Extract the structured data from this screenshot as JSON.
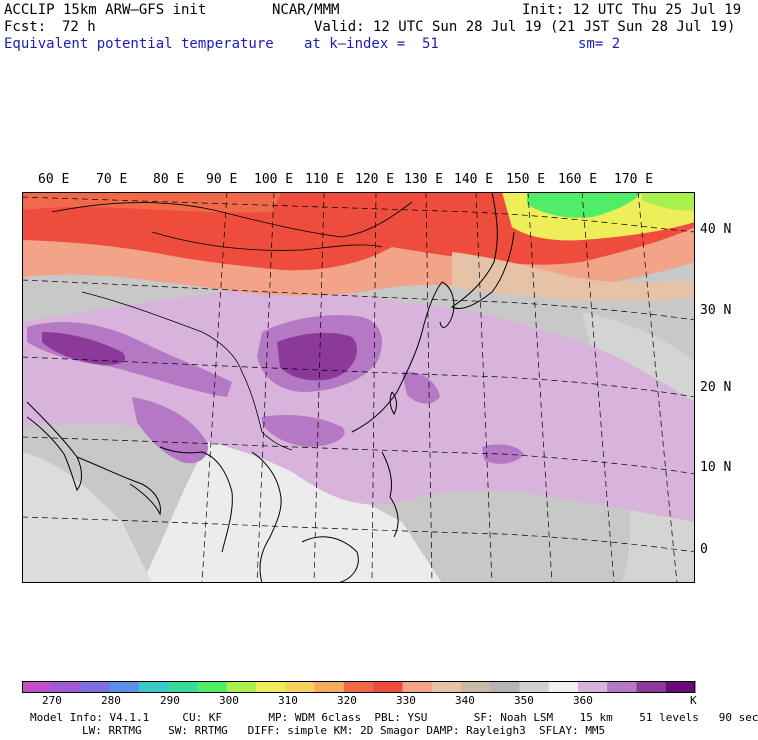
{
  "header": {
    "model_title": "ACCLIP 15km ARW–GFS init",
    "center": "NCAR/MMM",
    "init": "Init: 12 UTC Thu 25 Jul 19",
    "fcst_label": "Fcst:",
    "fcst_value": "72 h",
    "valid": "Valid: 12 UTC Sun 28 Jul 19 (21 JST Sun 28 Jul 19)",
    "field": "Equivalent potential temperature",
    "level": "at k–index =  51",
    "smooth": "sm= 2"
  },
  "map": {
    "lon_labels": [
      "60 E",
      "70 E",
      "80 E",
      "90 E",
      "100 E",
      "110 E",
      "120 E",
      "130 E",
      "140 E",
      "150 E",
      "160 E",
      "170 E"
    ],
    "lat_labels": [
      "40 N",
      "30 N",
      "20 N",
      "10 N",
      "0"
    ]
  },
  "colorbar": {
    "colors": [
      "#c050c8",
      "#a05ad6",
      "#7a70e0",
      "#5a90e6",
      "#3cc8c8",
      "#36dc9a",
      "#50ee68",
      "#a8f04e",
      "#eeee5a",
      "#f6d060",
      "#f6ac5e",
      "#f06a4a",
      "#ee4c3c",
      "#f3a488",
      "#e6c2a6",
      "#c9b9ab",
      "#b4b4b4",
      "#d2d2d2",
      "#f0f0f0",
      "#d8b4dc",
      "#b478c4",
      "#8c3a9a",
      "#6a0a78"
    ],
    "labels": [
      "270",
      "280",
      "290",
      "300",
      "310",
      "320",
      "330",
      "340",
      "350",
      "360"
    ],
    "unit": "K"
  },
  "footer": {
    "line1": "Model Info: V4.1.1     CU: KF       MP: WDM 6class  PBL: YSU       SF: Noah LSM    15 km    51 levels   90 sec",
    "line2": "LW: RRTMG    SW: RRTMG   DIFF: simple KM: 2D Smagor DAMP: Rayleigh3  SFLAY: MM5"
  }
}
